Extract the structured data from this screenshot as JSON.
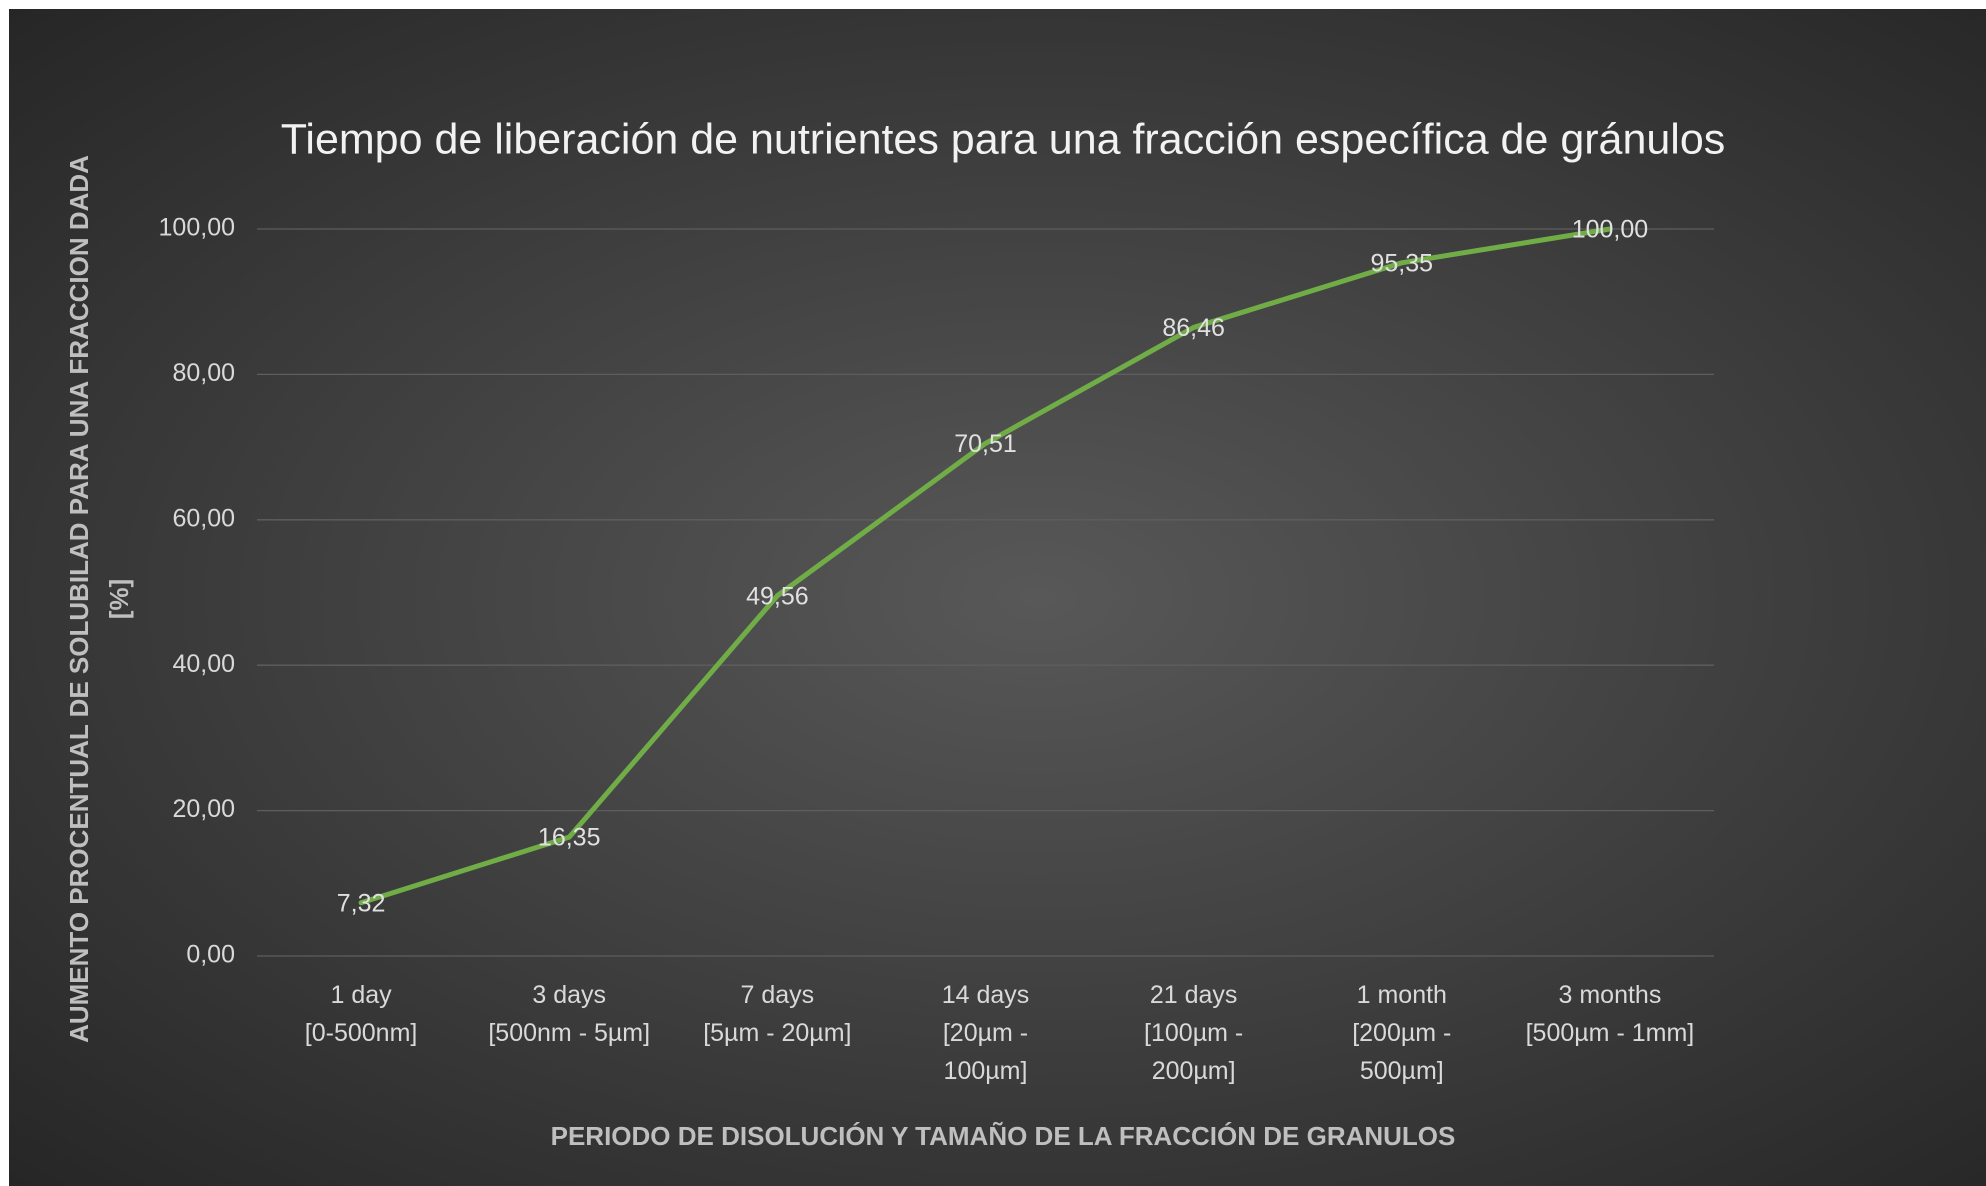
{
  "chart_data": {
    "type": "line",
    "title": "Tiempo de liberación de nutrientes para una fracción específica de gránulos",
    "x_label": "PERIODO DE DISOLUCIÓN Y TAMAÑO DE LA FRACCIÓN DE GRANULOS",
    "y_label": [
      "AUMENTO PROCENTUAL DE SOLUBILAD PARA UNA FRACCION DADA",
      "[%]"
    ],
    "categories": [
      "1 day\n[0-500nm]",
      "3 days\n[500nm - 5µm]",
      "7 days\n[5µm - 20µm]",
      "14 days\n[20µm -\n100µm]",
      "21 days\n[100µm -\n200µm]",
      "1 month\n[200µm -\n500µm]",
      "3 months\n[500µm - 1mm]"
    ],
    "values": [
      7.32,
      16.35,
      49.56,
      70.51,
      86.46,
      95.35,
      100
    ],
    "value_labels": [
      "7,32",
      "16,35",
      "49,56",
      "70,51",
      "86,46",
      "95,35",
      "100,00"
    ],
    "color": "#70ad47",
    "ylim": [
      0,
      100
    ],
    "yticks": [
      {
        "value": 0,
        "label": "0,00"
      },
      {
        "value": 20,
        "label": "20,00"
      },
      {
        "value": 40,
        "label": "40,00"
      },
      {
        "value": 60,
        "label": "60,00"
      },
      {
        "value": 80,
        "label": "80,00"
      },
      {
        "value": 100,
        "label": "100,00"
      }
    ],
    "grid": true
  }
}
